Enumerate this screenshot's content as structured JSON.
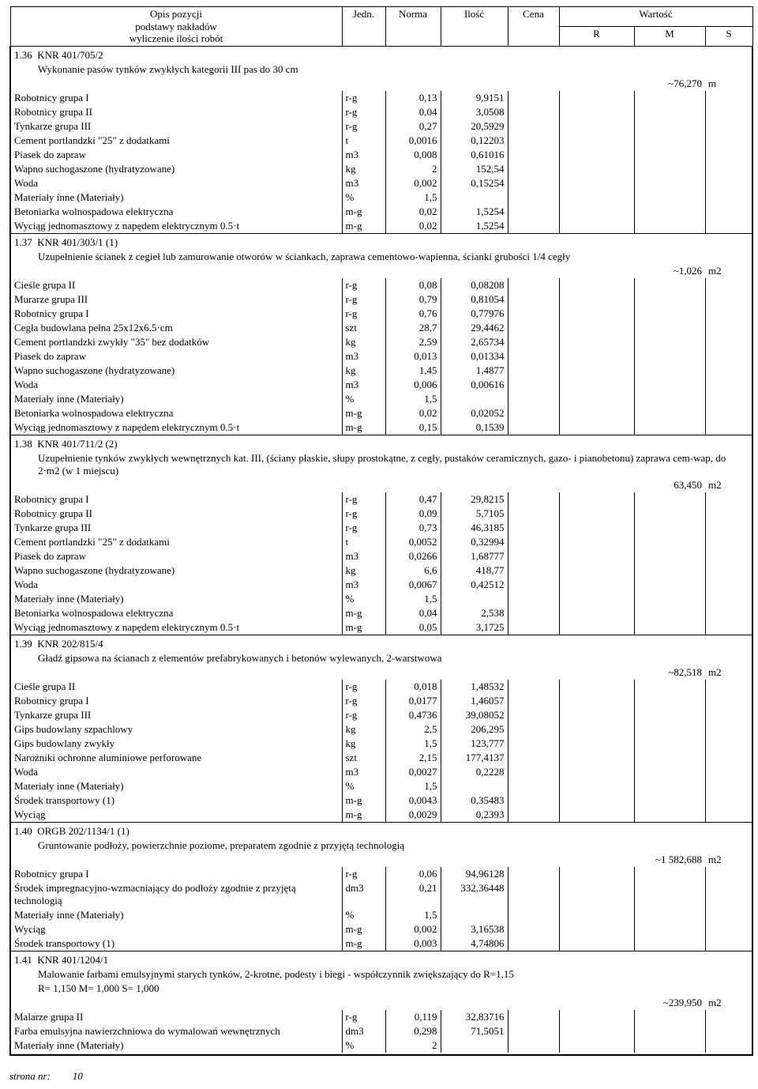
{
  "header": {
    "desc": "Opis pozycji",
    "desc2": "podstawy nakładów",
    "desc3": "wyliczenie ilości robót",
    "unit": "Jedn.",
    "norm": "Norma",
    "qty": "Ilość",
    "price": "Cena",
    "value": "Wartość",
    "r": "R",
    "m": "M",
    "s": "S"
  },
  "footer": {
    "label": "strona nr:",
    "page": "10"
  },
  "sections": [
    {
      "no": "1.36",
      "code": "KNR 401/705/2",
      "title": "Wykonanie pasów tynków zwykłych kategorii III pas do 30 cm",
      "sum": "~76,270",
      "sum_unit": "m",
      "rows": [
        {
          "d": "Robotnicy grupa I",
          "u": "r-g",
          "n": "0,13",
          "q": "9,9151"
        },
        {
          "d": "Robotnicy grupa II",
          "u": "r-g",
          "n": "0,04",
          "q": "3,0508"
        },
        {
          "d": "Tynkarze grupa III",
          "u": "r-g",
          "n": "0,27",
          "q": "20,5929"
        },
        {
          "d": "Cement portlandzki \"25\" z dodatkami",
          "u": "t",
          "n": "0,0016",
          "q": "0,12203"
        },
        {
          "d": "Piasek do zapraw",
          "u": "m3",
          "n": "0,008",
          "q": "0,61016"
        },
        {
          "d": "Wapno suchogaszone (hydratyzowane)",
          "u": "kg",
          "n": "2",
          "q": "152,54"
        },
        {
          "d": "Woda",
          "u": "m3",
          "n": "0,002",
          "q": "0,15254"
        },
        {
          "d": "Materiały inne (Materiały)",
          "u": "%",
          "n": "1,5",
          "q": ""
        },
        {
          "d": "Betoniarka wolnospadowa elektryczna",
          "u": "m-g",
          "n": "0,02",
          "q": "1,5254"
        },
        {
          "d": "Wyciąg jednomasztowy z napędem elektrycznym 0.5·t",
          "u": "m-g",
          "n": "0,02",
          "q": "1,5254"
        }
      ]
    },
    {
      "no": "1.37",
      "code": "KNR 401/303/1 (1)",
      "title": "Uzupełnienie ścianek z cegieł lub zamurowanie otworów w ściankach, zaprawa cementowo-wapienna, ścianki grubości 1/4 cegły",
      "sum": "~1,026",
      "sum_unit": "m2",
      "rows": [
        {
          "d": "Cieśle grupa II",
          "u": "r-g",
          "n": "0,08",
          "q": "0,08208"
        },
        {
          "d": "Murarze grupa III",
          "u": "r-g",
          "n": "0,79",
          "q": "0,81054"
        },
        {
          "d": "Robotnicy grupa I",
          "u": "r-g",
          "n": "0,76",
          "q": "0,77976"
        },
        {
          "d": "Cegła budowlana pełna 25x12x6.5·cm",
          "u": "szt",
          "n": "28,7",
          "q": "29,4462"
        },
        {
          "d": "Cement portlandzki zwykły \"35\" bez dodatków",
          "u": "kg",
          "n": "2,59",
          "q": "2,65734"
        },
        {
          "d": "Piasek do zapraw",
          "u": "m3",
          "n": "0,013",
          "q": "0,01334"
        },
        {
          "d": "Wapno suchogaszone (hydratyzowane)",
          "u": "kg",
          "n": "1,45",
          "q": "1,4877"
        },
        {
          "d": "Woda",
          "u": "m3",
          "n": "0,006",
          "q": "0,00616"
        },
        {
          "d": "Materiały inne (Materiały)",
          "u": "%",
          "n": "1,5",
          "q": ""
        },
        {
          "d": "Betoniarka wolnospadowa elektryczna",
          "u": "m-g",
          "n": "0,02",
          "q": "0,02052"
        },
        {
          "d": "Wyciąg jednomasztowy z napędem elektrycznym 0.5·t",
          "u": "m-g",
          "n": "0,15",
          "q": "0,1539"
        }
      ]
    },
    {
      "no": "1.38",
      "code": "KNR 401/711/2 (2)",
      "title": "Uzupełnienie tynków zwykłych wewnętrznych kat. III, (ściany płaskie, słupy prostokątne, z cegły, pustaków ceramicznych, gazo- i pianobetonu) zaprawa cem-wap, do 2·m2 (w 1 miejscu)",
      "sum": "63,450",
      "sum_unit": "m2",
      "rows": [
        {
          "d": "Robotnicy grupa I",
          "u": "r-g",
          "n": "0,47",
          "q": "29,8215"
        },
        {
          "d": "Robotnicy grupa II",
          "u": "r-g",
          "n": "0,09",
          "q": "5,7105"
        },
        {
          "d": "Tynkarze grupa III",
          "u": "r-g",
          "n": "0,73",
          "q": "46,3185"
        },
        {
          "d": "Cement portlandzki \"25\" z dodatkami",
          "u": "t",
          "n": "0,0052",
          "q": "0,32994"
        },
        {
          "d": "Piasek do zapraw",
          "u": "m3",
          "n": "0,0266",
          "q": "1,68777"
        },
        {
          "d": "Wapno suchogaszone (hydratyzowane)",
          "u": "kg",
          "n": "6,6",
          "q": "418,77"
        },
        {
          "d": "Woda",
          "u": "m3",
          "n": "0,0067",
          "q": "0,42512"
        },
        {
          "d": "Materiały inne (Materiały)",
          "u": "%",
          "n": "1,5",
          "q": ""
        },
        {
          "d": "Betoniarka wolnospadowa elektryczna",
          "u": "m-g",
          "n": "0,04",
          "q": "2,538"
        },
        {
          "d": "Wyciąg jednomasztowy z napędem elektrycznym 0.5·t",
          "u": "m-g",
          "n": "0,05",
          "q": "3,1725"
        }
      ]
    },
    {
      "no": "1.39",
      "code": "KNR 202/815/4",
      "title": "Gładź gipsowa na ścianach z elementów prefabrykowanych i betonów wylewanych, 2-warstwowa",
      "sum": "~82,518",
      "sum_unit": "m2",
      "rows": [
        {
          "d": "Cieśle grupa II",
          "u": "r-g",
          "n": "0,018",
          "q": "1,48532"
        },
        {
          "d": "Robotnicy grupa I",
          "u": "r-g",
          "n": "0,0177",
          "q": "1,46057"
        },
        {
          "d": "Tynkarze grupa III",
          "u": "r-g",
          "n": "0,4736",
          "q": "39,08052"
        },
        {
          "d": "Gips budowlany szpachlowy",
          "u": "kg",
          "n": "2,5",
          "q": "206,295"
        },
        {
          "d": "Gips budowlany zwykły",
          "u": "kg",
          "n": "1,5",
          "q": "123,777"
        },
        {
          "d": "Narożniki ochronne aluminiowe perforowane",
          "u": "szt",
          "n": "2,15",
          "q": "177,4137"
        },
        {
          "d": "Woda",
          "u": "m3",
          "n": "0,0027",
          "q": "0,2228"
        },
        {
          "d": "Materiały inne (Materiały)",
          "u": "%",
          "n": "1,5",
          "q": ""
        },
        {
          "d": "Środek transportowy (1)",
          "u": "m-g",
          "n": "0,0043",
          "q": "0,35483"
        },
        {
          "d": "Wyciąg",
          "u": "m-g",
          "n": "0,0029",
          "q": "0,2393"
        }
      ]
    },
    {
      "no": "1.40",
      "code": "ORGB 202/1134/1 (1)",
      "title": "Gruntowanie podłoży, powierzchnie poziome, preparatem zgodnie z przyjętą technologią",
      "sum": "~1 582,688",
      "sum_unit": "m2",
      "rows": [
        {
          "d": "Robotnicy grupa I",
          "u": "r-g",
          "n": "0,06",
          "q": "94,96128"
        },
        {
          "d": "Środek impregnacyjno-wzmacniający do podłoży zgodnie z przyjętą technologią",
          "u": "dm3",
          "n": "0,21",
          "q": "332,36448"
        },
        {
          "d": "Materiały inne (Materiały)",
          "u": "%",
          "n": "1,5",
          "q": ""
        },
        {
          "d": "Wyciąg",
          "u": "m-g",
          "n": "0,002",
          "q": "3,16538"
        },
        {
          "d": "Środek transportowy (1)",
          "u": "m-g",
          "n": "0,003",
          "q": "4,74806"
        }
      ]
    },
    {
      "no": "1.41",
      "code": "KNR 401/1204/1",
      "title": "Malowanie farbami emulsyjnymi starych tynków, 2-krotne, podesty i biegi - współczynnik zwiększający do R=1,15",
      "subtitle": "R= 1,150   M= 1,000   S= 1,000",
      "sum": "~239,950",
      "sum_unit": "m2",
      "rows": [
        {
          "d": "Malarze grupa II",
          "u": "r-g",
          "n": "0,119",
          "q": "32,83716"
        },
        {
          "d": "Farba emulsyjna nawierzchniowa do wymalowań wewnętrznych",
          "u": "dm3",
          "n": "0,298",
          "q": "71,5051"
        },
        {
          "d": "Materiały inne (Materiały)",
          "u": "%",
          "n": "2",
          "q": ""
        }
      ]
    }
  ]
}
